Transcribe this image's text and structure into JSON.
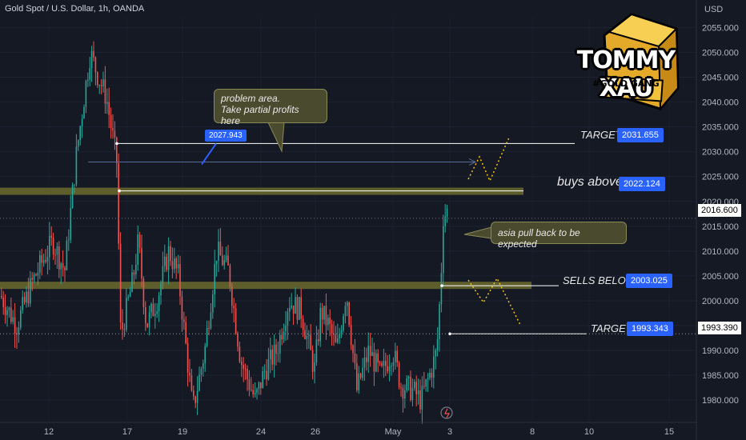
{
  "header": {
    "title": "Gold Spot / U.S. Dollar, 1h, OANDA"
  },
  "logo": {
    "title": "TOMMY XAU",
    "subtitle": "#GOLD GANG"
  },
  "colors": {
    "up": "#26a69a",
    "down": "#ef5350",
    "zone": "#6b6b2e",
    "blue": "#2962ff",
    "background": "#151924"
  },
  "chart_data": {
    "type": "candlestick",
    "y_unit": "USD",
    "ylim": [
      1976,
      2057
    ],
    "y_ticks": [
      2055,
      2050,
      2045,
      2040,
      2035,
      2030,
      2025,
      2020,
      2015,
      2010,
      2005,
      2000,
      1995,
      1990,
      1985,
      1980
    ],
    "y_tick_labels": [
      "2055.000",
      "2050.000",
      "2045.000",
      "2040.000",
      "2035.000",
      "2030.000",
      "2025.000",
      "2020.000",
      "2015.000",
      "2010.000",
      "2005.000",
      "2000.000",
      "1995.000",
      "1990.000",
      "1985.000",
      "1980.000"
    ],
    "x_labels": [
      "12",
      "17",
      "19",
      "24",
      "26",
      "May",
      "3",
      "8",
      "10",
      "15"
    ],
    "last_price": "2016.600",
    "crosshair_price": "1993.390",
    "annotations": {
      "target_upper": {
        "text": "TARGET",
        "value": "2031.655"
      },
      "buys_above": {
        "text": "buys above",
        "value": "2022.124"
      },
      "sells_below": {
        "text": "SELLS BELOW",
        "value": "2003.025"
      },
      "target_lower": {
        "text": "TARGET",
        "value": "1993.343"
      },
      "measure_tag": "2027.943",
      "note_top": [
        "problem area.",
        "Take partial profits here"
      ],
      "note_mid": "asia pull back to be expected"
    }
  }
}
